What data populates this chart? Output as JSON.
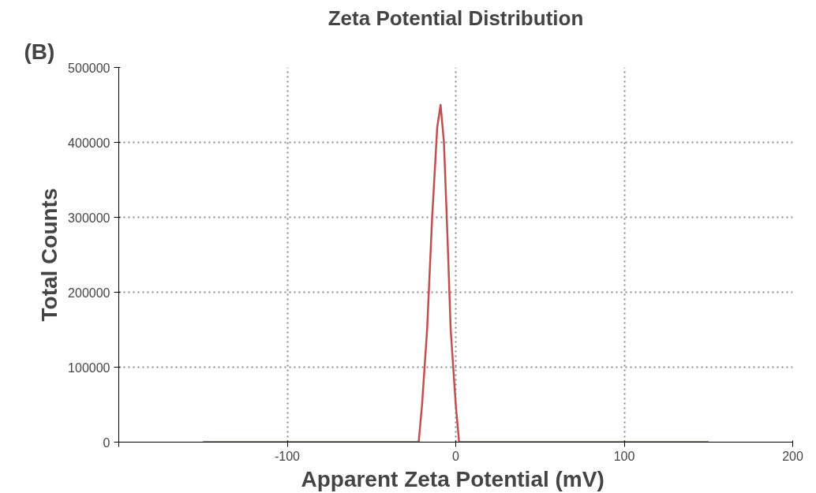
{
  "chart_data": {
    "type": "line",
    "title": "Zeta Potential Distribution",
    "xlabel": "Apparent  Zeta Potential (mV)",
    "ylabel": "Total Counts",
    "annotations": [
      "(B)"
    ],
    "series": [
      {
        "color": "#c0504d",
        "x": [
          -150,
          -22,
          -20,
          -17,
          -14,
          -11,
          -9,
          -7,
          -5,
          -3,
          0,
          2,
          150
        ],
        "values": [
          0,
          0,
          50000,
          150000,
          300000,
          420000,
          450000,
          400000,
          280000,
          150000,
          50000,
          0,
          0
        ]
      }
    ],
    "xlim": [
      -200,
      200
    ],
    "xticks": [
      {
        "value": -200,
        "label": null
      },
      -100,
      0,
      100,
      200
    ],
    "ylim": [
      0,
      500000
    ],
    "yticks": [
      0,
      100000,
      200000,
      300000,
      400000,
      500000
    ],
    "grid": true,
    "marker": "none",
    "line_style": "solid"
  }
}
